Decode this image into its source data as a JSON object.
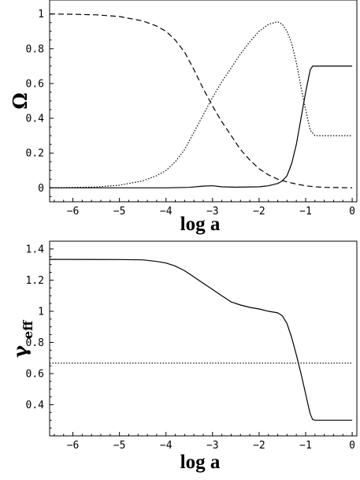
{
  "chart_data": [
    {
      "type": "line",
      "xlabel": "log a",
      "ylabel": "Ω",
      "xlim": [
        -6.5,
        0.1
      ],
      "ylim": [
        -0.08,
        1.08
      ],
      "xticks": [
        -6,
        -5,
        -4,
        -3,
        -2,
        -1,
        0
      ],
      "yticks": [
        0,
        0.2,
        0.4,
        0.6,
        0.8,
        1
      ],
      "grid": false,
      "series": [
        {
          "style": "dashed",
          "x": [
            -6.5,
            -6,
            -5.5,
            -5,
            -4.5,
            -4.2,
            -4,
            -3.8,
            -3.6,
            -3.4,
            -3.2,
            -3,
            -2.8,
            -2.6,
            -2.4,
            -2.2,
            -2,
            -1.8,
            -1.6,
            -1.4,
            -1.2,
            -1,
            -0.8,
            -0.6,
            -0.4,
            -0.2,
            0
          ],
          "y": [
            1.0,
            0.998,
            0.995,
            0.985,
            0.96,
            0.93,
            0.9,
            0.85,
            0.78,
            0.68,
            0.57,
            0.47,
            0.38,
            0.3,
            0.22,
            0.16,
            0.11,
            0.075,
            0.05,
            0.034,
            0.022,
            0.012,
            0.006,
            0.003,
            0.002,
            0.001,
            0.0
          ]
        },
        {
          "style": "dotted",
          "x": [
            -6.5,
            -6,
            -5.5,
            -5,
            -4.5,
            -4.2,
            -4,
            -3.8,
            -3.6,
            -3.4,
            -3.2,
            -3,
            -2.8,
            -2.6,
            -2.4,
            -2.2,
            -2,
            -1.8,
            -1.6,
            -1.5,
            -1.4,
            -1.3,
            -1.2,
            -1.1,
            -1.0,
            -0.9,
            -0.8,
            -0.6,
            -0.4,
            -0.2,
            0
          ],
          "y": [
            0.0,
            0.002,
            0.005,
            0.015,
            0.04,
            0.07,
            0.1,
            0.15,
            0.22,
            0.32,
            0.42,
            0.52,
            0.61,
            0.69,
            0.77,
            0.84,
            0.9,
            0.94,
            0.955,
            0.94,
            0.9,
            0.83,
            0.72,
            0.58,
            0.45,
            0.33,
            0.3,
            0.3,
            0.3,
            0.3,
            0.3
          ]
        },
        {
          "style": "solid",
          "x": [
            -6.5,
            -6,
            -5,
            -4,
            -3.5,
            -3.2,
            -3.0,
            -2.8,
            -2.5,
            -2.0,
            -1.8,
            -1.6,
            -1.5,
            -1.4,
            -1.3,
            -1.2,
            -1.1,
            -1.0,
            -0.9,
            -0.85,
            -0.8,
            -0.6,
            -0.4,
            -0.2,
            0
          ],
          "y": [
            0.0,
            0.0,
            0.0,
            0.0,
            0.003,
            0.01,
            0.012,
            0.006,
            0.004,
            0.006,
            0.012,
            0.025,
            0.04,
            0.07,
            0.14,
            0.25,
            0.4,
            0.55,
            0.68,
            0.7,
            0.7,
            0.7,
            0.7,
            0.7,
            0.7
          ]
        }
      ]
    },
    {
      "type": "line",
      "xlabel": "log a",
      "ylabel": "γ",
      "ylabel_sub": "eff",
      "xlim": [
        -6.5,
        0.1
      ],
      "ylim": [
        0.2,
        1.45
      ],
      "xticks": [
        -6,
        -5,
        -4,
        -3,
        -2,
        -1,
        0
      ],
      "yticks": [
        0.4,
        0.6,
        0.8,
        1,
        1.2,
        1.4
      ],
      "grid": false,
      "series": [
        {
          "style": "solid",
          "x": [
            -6.5,
            -6,
            -5,
            -4.5,
            -4.2,
            -4.0,
            -3.8,
            -3.6,
            -3.4,
            -3.2,
            -3.0,
            -2.8,
            -2.6,
            -2.4,
            -2.2,
            -2.0,
            -1.8,
            -1.6,
            -1.5,
            -1.4,
            -1.3,
            -1.2,
            -1.1,
            -1.0,
            -0.95,
            -0.9,
            -0.85,
            -0.8,
            -0.6,
            -0.4,
            -0.2,
            0
          ],
          "y": [
            1.333,
            1.333,
            1.332,
            1.33,
            1.32,
            1.31,
            1.29,
            1.26,
            1.22,
            1.18,
            1.14,
            1.1,
            1.06,
            1.04,
            1.025,
            1.015,
            1.0,
            0.99,
            0.97,
            0.92,
            0.83,
            0.72,
            0.6,
            0.47,
            0.4,
            0.34,
            0.305,
            0.3,
            0.3,
            0.3,
            0.3,
            0.3
          ]
        },
        {
          "style": "dotted",
          "x": [
            -6.5,
            0
          ],
          "y": [
            0.667,
            0.667
          ]
        }
      ]
    }
  ]
}
